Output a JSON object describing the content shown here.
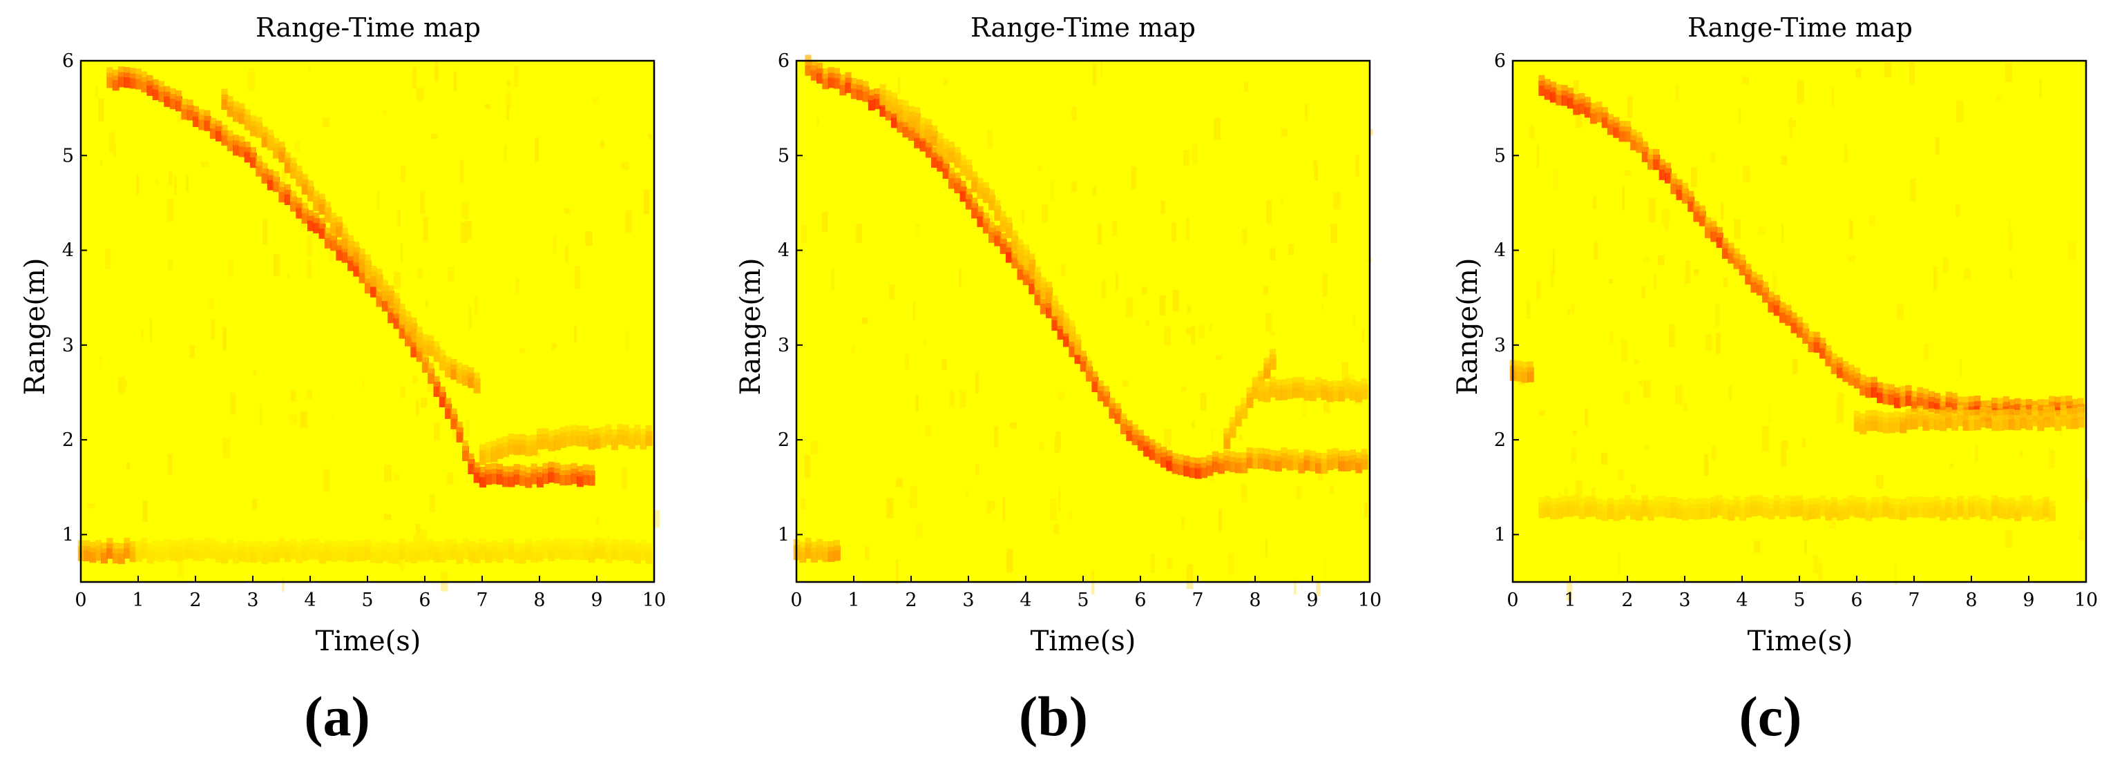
{
  "colors": {
    "background_low": "#ffff00",
    "mid": "#ffb000",
    "high": "#ff1a00",
    "axes": "#000000"
  },
  "colormap": "hot (yellow = low, red = high)",
  "chart_data": [
    {
      "type": "heatmap",
      "panel": "(a)",
      "title": "Range-Time map",
      "xlabel": "Time(s)",
      "ylabel": "Range(m)",
      "xlim": [
        0,
        10
      ],
      "ylim": [
        0.5,
        6
      ],
      "xticks": [
        "0",
        "1",
        "2",
        "3",
        "4",
        "5",
        "6",
        "7",
        "8",
        "9",
        "10"
      ],
      "yticks": [
        "1",
        "2",
        "3",
        "4",
        "5",
        "6"
      ],
      "grid": false,
      "tracks": [
        {
          "t": [
            0.5,
            1.0,
            1.5,
            2.0,
            2.5,
            3.0,
            3.5,
            4.0,
            4.5,
            5.0,
            5.5,
            6.0,
            6.5,
            6.8,
            7.0,
            7.5,
            8.0,
            8.5,
            9.0
          ],
          "range": [
            5.8,
            5.75,
            5.6,
            5.4,
            5.2,
            4.95,
            4.6,
            4.3,
            4.0,
            3.65,
            3.25,
            2.8,
            2.2,
            1.7,
            1.6,
            1.6,
            1.6,
            1.6,
            1.6
          ],
          "intensity": 0.85
        },
        {
          "t": [
            2.5,
            3.0,
            3.5,
            4.0,
            4.5,
            5.0,
            5.5,
            6.0,
            6.5,
            7.0
          ],
          "range": [
            5.55,
            5.3,
            5.0,
            4.6,
            4.2,
            3.8,
            3.4,
            3.0,
            2.7,
            2.55
          ],
          "intensity": 0.55
        },
        {
          "t": [
            7.0,
            7.5,
            8.0,
            8.5,
            9.0,
            9.5,
            10.0
          ],
          "range": [
            1.8,
            1.9,
            1.95,
            2.0,
            2.0,
            2.0,
            2.0
          ],
          "intensity": 0.45
        },
        {
          "t": [
            0.0,
            0.2,
            0.4,
            0.6,
            0.8,
            1.0
          ],
          "range": [
            0.8,
            0.8,
            0.8,
            0.8,
            0.8,
            0.8
          ],
          "intensity": 0.65
        },
        {
          "t": [
            1.0,
            2.0,
            3.0,
            4.0,
            5.0,
            6.0,
            7.0,
            8.0,
            9.0,
            10.0
          ],
          "range": [
            0.8,
            0.8,
            0.8,
            0.8,
            0.8,
            0.8,
            0.8,
            0.8,
            0.8,
            0.8
          ],
          "intensity": 0.2
        }
      ]
    },
    {
      "type": "heatmap",
      "panel": "(b)",
      "title": "Range-Time map",
      "xlabel": "Time(s)",
      "ylabel": "Range(m)",
      "xlim": [
        0,
        10
      ],
      "ylim": [
        0.5,
        6
      ],
      "xticks": [
        "0",
        "1",
        "2",
        "3",
        "4",
        "5",
        "6",
        "7",
        "8",
        "9",
        "10"
      ],
      "yticks": [
        "1",
        "2",
        "3",
        "4",
        "5",
        "6"
      ],
      "grid": false,
      "tracks": [
        {
          "t": [
            0.2,
            0.5,
            1.0,
            1.5,
            2.0,
            2.5,
            3.0,
            3.5,
            4.0,
            4.5,
            5.0,
            5.5,
            6.0,
            6.5,
            7.0,
            7.5
          ],
          "range": [
            5.9,
            5.8,
            5.7,
            5.5,
            5.25,
            4.9,
            4.5,
            4.1,
            3.7,
            3.25,
            2.8,
            2.3,
            1.95,
            1.72,
            1.68,
            1.75
          ],
          "intensity": 0.9
        },
        {
          "t": [
            1.5,
            2.0,
            2.5,
            3.0,
            3.5,
            4.0,
            4.5,
            5.0
          ],
          "range": [
            5.6,
            5.4,
            5.1,
            4.8,
            4.4,
            3.9,
            3.4,
            2.9
          ],
          "intensity": 0.5
        },
        {
          "t": [
            7.5,
            7.8,
            8.1,
            8.4
          ],
          "range": [
            2.0,
            2.3,
            2.6,
            2.9
          ],
          "intensity": 0.5
        },
        {
          "t": [
            8.0,
            8.5,
            9.0,
            9.5,
            10.0
          ],
          "range": [
            2.5,
            2.5,
            2.5,
            2.5,
            2.5
          ],
          "intensity": 0.45
        },
        {
          "t": [
            7.5,
            8.0,
            8.5,
            9.0,
            9.5,
            10.0
          ],
          "range": [
            1.75,
            1.75,
            1.75,
            1.75,
            1.75,
            1.75
          ],
          "intensity": 0.6
        },
        {
          "t": [
            0.0,
            0.2,
            0.4,
            0.6,
            0.8
          ],
          "range": [
            0.8,
            0.8,
            0.8,
            0.8,
            0.8
          ],
          "intensity": 0.55
        }
      ]
    },
    {
      "type": "heatmap",
      "panel": "(c)",
      "title": "Range-Time map",
      "xlabel": "Time(s)",
      "ylabel": "Range(m)",
      "xlim": [
        0,
        10
      ],
      "ylim": [
        0.5,
        6
      ],
      "xticks": [
        "0",
        "1",
        "2",
        "3",
        "4",
        "5",
        "6",
        "7",
        "8",
        "9",
        "10"
      ],
      "yticks": [
        "1",
        "2",
        "3",
        "4",
        "5",
        "6"
      ],
      "grid": false,
      "tracks": [
        {
          "t": [
            0.5,
            1.0,
            1.5,
            2.0,
            2.5,
            3.0,
            3.5,
            4.0,
            4.5,
            5.0,
            5.5,
            6.0,
            6.5,
            7.0,
            7.5,
            8.0,
            8.5,
            9.0,
            9.5,
            10.0
          ],
          "range": [
            5.7,
            5.55,
            5.4,
            5.2,
            4.9,
            4.55,
            4.15,
            3.8,
            3.45,
            3.15,
            2.85,
            2.6,
            2.45,
            2.4,
            2.35,
            2.3,
            2.3,
            2.3,
            2.3,
            2.3
          ],
          "intensity": 0.85
        },
        {
          "t": [
            6.0,
            6.5,
            7.0,
            7.5,
            8.0,
            8.5,
            9.0,
            9.5,
            10.0
          ],
          "range": [
            2.15,
            2.15,
            2.2,
            2.2,
            2.2,
            2.2,
            2.2,
            2.2,
            2.2
          ],
          "intensity": 0.5
        },
        {
          "t": [
            0.5,
            1.5,
            2.5,
            3.5,
            4.5,
            5.5,
            6.5,
            7.5,
            8.5,
            9.5
          ],
          "range": [
            1.25,
            1.25,
            1.25,
            1.25,
            1.25,
            1.25,
            1.25,
            1.25,
            1.25,
            1.25
          ],
          "intensity": 0.3
        },
        {
          "t": [
            0.0,
            0.2,
            0.4
          ],
          "range": [
            2.7,
            2.7,
            2.7
          ],
          "intensity": 0.6
        }
      ]
    }
  ]
}
